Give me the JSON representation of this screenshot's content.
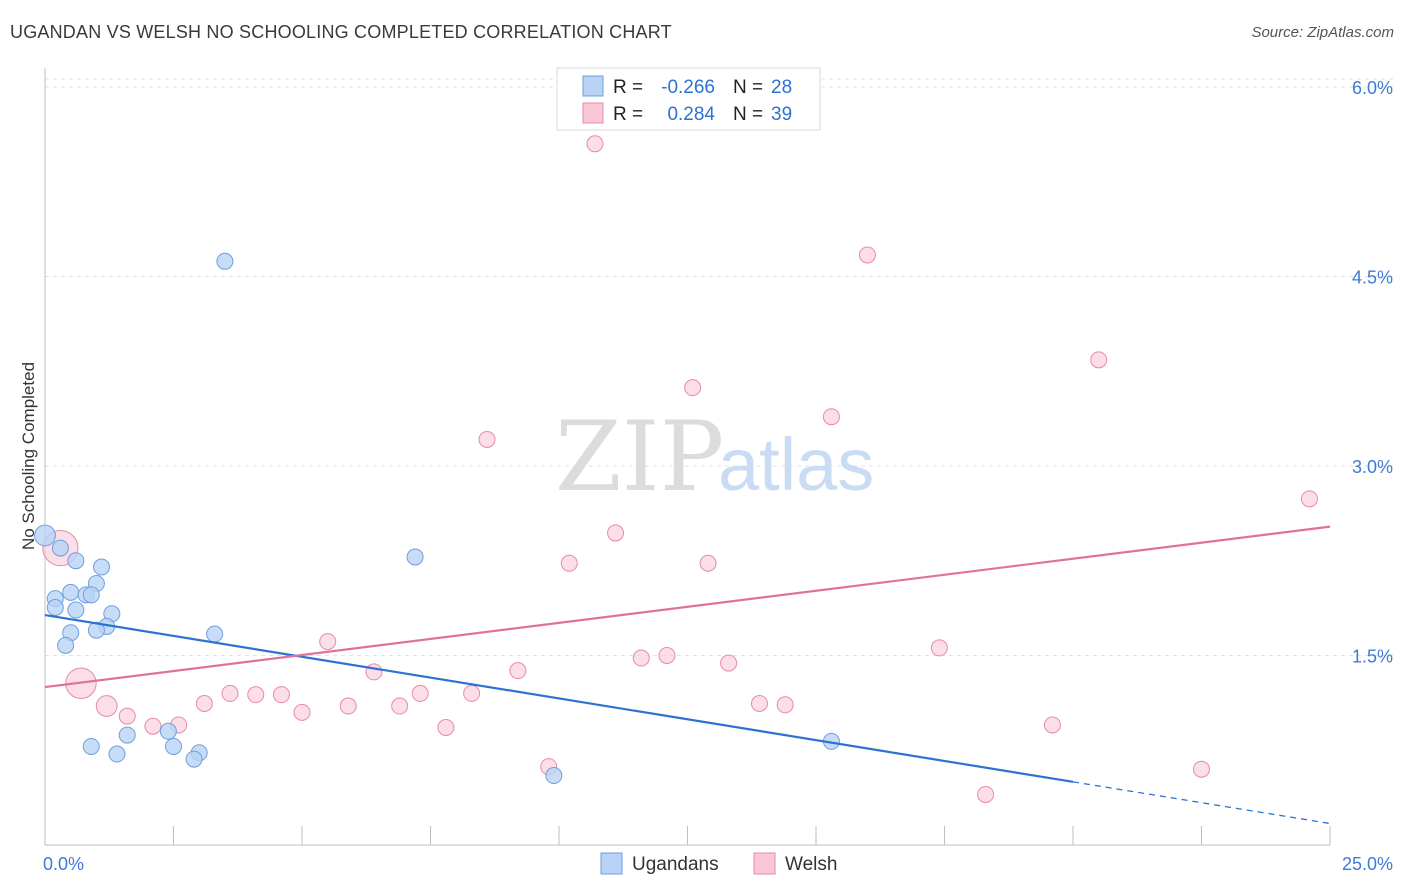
{
  "header": {
    "title": "UGANDAN VS WELSH NO SCHOOLING COMPLETED CORRELATION CHART",
    "source": "Source: ZipAtlas.com"
  },
  "watermark": {
    "part1": "ZIP",
    "part2": "atlas"
  },
  "legend_box": {
    "rows": [
      {
        "r_label": "R =",
        "r_value": "-0.266",
        "n_label": "N =",
        "n_value": "28"
      },
      {
        "r_label": "R =",
        "r_value": "0.284",
        "n_label": "N =",
        "n_value": "39"
      }
    ]
  },
  "bottom_legend": {
    "series1": "Ugandans",
    "series2": "Welsh"
  },
  "colors": {
    "ugandans_fill": "#b8d3f5",
    "ugandans_stroke": "#6f9fdc",
    "ugandans_line": "#2d72d2",
    "welsh_fill": "#f9c8d7",
    "welsh_stroke": "#e88aa8",
    "welsh_line": "#e0719a",
    "axis_text": "#3f7ad6"
  },
  "chart_data": {
    "type": "scatter",
    "title": "UGANDAN VS WELSH NO SCHOOLING COMPLETED CORRELATION CHART",
    "xlabel": "",
    "ylabel": "No Schooling Completed",
    "xlim": [
      0,
      25
    ],
    "ylim": [
      0,
      6.15
    ],
    "x_tick_labels": [
      {
        "value": 0,
        "label": "0.0%"
      },
      {
        "value": 25,
        "label": "25.0%"
      }
    ],
    "y_tick_labels": [
      {
        "value": 1.5,
        "label": "1.5%"
      },
      {
        "value": 3.0,
        "label": "3.0%"
      },
      {
        "value": 4.5,
        "label": "4.5%"
      },
      {
        "value": 6.0,
        "label": "6.0%"
      }
    ],
    "grid": "horizontal dashed",
    "legend": "top-center",
    "series": [
      {
        "name": "Ugandans",
        "R": -0.266,
        "N": 28,
        "trend": {
          "x0": 0,
          "y0": 1.82,
          "x1": 20,
          "y1": 0.5,
          "dashed_to_x": 25,
          "dashed_to_y": 0.17
        },
        "points": [
          [
            0.0,
            2.45,
            1.3
          ],
          [
            0.3,
            2.35,
            1
          ],
          [
            0.2,
            1.95,
            1
          ],
          [
            0.2,
            1.88,
            1
          ],
          [
            0.6,
            2.25,
            1
          ],
          [
            1.1,
            2.2,
            1
          ],
          [
            1.0,
            2.07,
            1
          ],
          [
            0.5,
            2.0,
            1
          ],
          [
            0.8,
            1.98,
            1
          ],
          [
            0.9,
            1.98,
            1
          ],
          [
            0.6,
            1.86,
            1
          ],
          [
            1.3,
            1.83,
            1
          ],
          [
            1.2,
            1.73,
            1
          ],
          [
            1.0,
            1.7,
            1
          ],
          [
            0.5,
            1.68,
            1
          ],
          [
            0.4,
            1.58,
            1
          ],
          [
            3.3,
            1.67,
            1
          ],
          [
            7.2,
            2.28,
            1
          ],
          [
            3.5,
            4.62,
            1
          ],
          [
            1.6,
            0.87,
            1
          ],
          [
            0.9,
            0.78,
            1
          ],
          [
            1.4,
            0.72,
            1
          ],
          [
            2.4,
            0.9,
            1
          ],
          [
            2.5,
            0.78,
            1
          ],
          [
            3.0,
            0.73,
            1
          ],
          [
            2.9,
            0.68,
            1
          ],
          [
            15.3,
            0.82,
            1
          ],
          [
            9.9,
            0.55,
            1
          ]
        ]
      },
      {
        "name": "Welsh",
        "R": 0.284,
        "N": 39,
        "trend": {
          "x0": 0,
          "y0": 1.25,
          "x1": 25,
          "y1": 2.52
        },
        "points": [
          [
            0.3,
            2.35,
            2.2
          ],
          [
            0.7,
            1.28,
            1.9
          ],
          [
            1.2,
            1.1,
            1.3
          ],
          [
            1.6,
            1.02,
            1
          ],
          [
            2.1,
            0.94,
            1
          ],
          [
            2.6,
            0.95,
            1
          ],
          [
            3.1,
            1.12,
            1
          ],
          [
            3.6,
            1.2,
            1
          ],
          [
            4.1,
            1.19,
            1
          ],
          [
            4.6,
            1.19,
            1
          ],
          [
            5.0,
            1.05,
            1
          ],
          [
            5.5,
            1.61,
            1
          ],
          [
            5.9,
            1.1,
            1
          ],
          [
            6.4,
            1.37,
            1
          ],
          [
            6.9,
            1.1,
            1
          ],
          [
            7.3,
            1.2,
            1
          ],
          [
            7.8,
            0.93,
            1
          ],
          [
            8.3,
            1.2,
            1
          ],
          [
            8.6,
            3.21,
            1
          ],
          [
            9.2,
            1.38,
            1
          ],
          [
            9.8,
            0.62,
            1
          ],
          [
            10.2,
            2.23,
            1
          ],
          [
            10.7,
            5.55,
            1
          ],
          [
            11.1,
            2.47,
            1
          ],
          [
            11.6,
            1.48,
            1
          ],
          [
            12.1,
            1.5,
            1
          ],
          [
            12.6,
            3.62,
            1
          ],
          [
            12.9,
            2.23,
            1
          ],
          [
            13.3,
            1.44,
            1
          ],
          [
            13.9,
            1.12,
            1
          ],
          [
            14.4,
            1.11,
            1
          ],
          [
            15.3,
            3.39,
            1
          ],
          [
            16.0,
            4.67,
            1
          ],
          [
            17.4,
            1.56,
            1
          ],
          [
            18.3,
            0.4,
            1
          ],
          [
            19.6,
            0.95,
            1
          ],
          [
            20.5,
            3.84,
            1
          ],
          [
            22.5,
            0.6,
            1
          ],
          [
            24.6,
            2.74,
            1
          ]
        ]
      }
    ]
  }
}
